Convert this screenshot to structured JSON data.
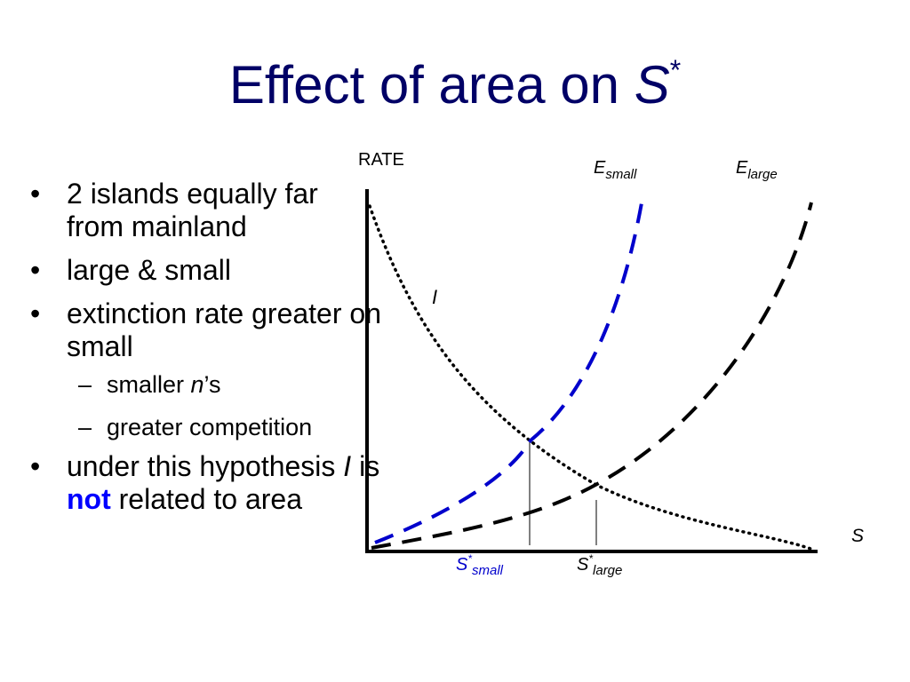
{
  "title": {
    "text": "Effect of area on ",
    "variable": "S",
    "superscript": "*"
  },
  "bullets": {
    "b1": "2 islands equally far from mainland",
    "b2": "large & small",
    "b3": "extinction rate greater on small",
    "sub1_prefix": "smaller ",
    "sub1_italic": "n",
    "sub1_suffix": "’s",
    "sub2": "greater competition",
    "b4_part1": "under this hypothesis ",
    "b4_italic": "I",
    "b4_part2": " is ",
    "b4_bold": "not",
    "b4_part3": " related to area"
  },
  "diagram": {
    "y_axis_label": "RATE",
    "x_axis_label": "S",
    "immigration_label": "I",
    "e_small_main": "E",
    "e_small_sub": "small",
    "e_large_main": "E",
    "e_large_sub": "large",
    "s_small_main": "S",
    "s_small_sup": "*",
    "s_small_sub": "small",
    "s_large_main": "S",
    "s_large_sup": "*",
    "s_large_sub": "large",
    "colors": {
      "title": "#000066",
      "accent_blue": "#0000cc",
      "emphasis_blue": "#0000ff",
      "curve_black": "#000000"
    }
  }
}
